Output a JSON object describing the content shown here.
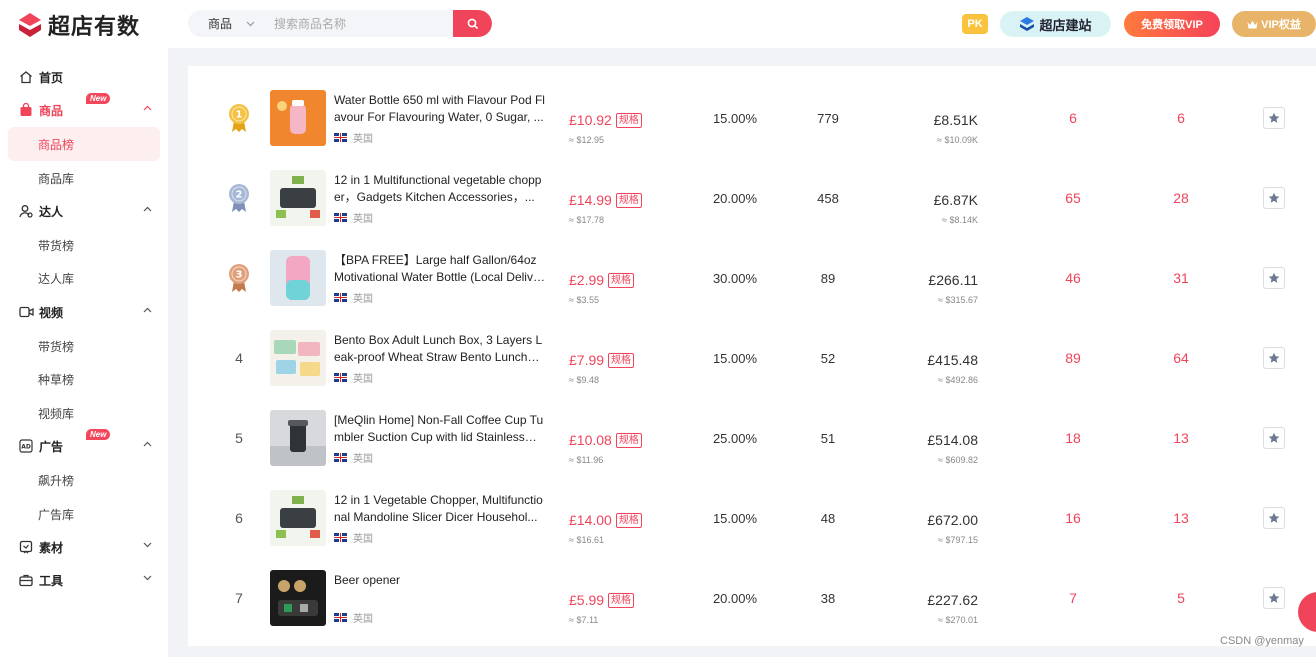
{
  "app": {
    "name": "超店有数"
  },
  "search": {
    "category": "商品",
    "placeholder": "搜索商品名称"
  },
  "header": {
    "pk": "PK",
    "build_site": "超店建站",
    "free_vip": "免费领取VIP",
    "vip_rights": "VIP权益"
  },
  "sidebar": {
    "home": "首页",
    "goods": {
      "label": "商品",
      "new_tag": "New",
      "items": [
        "商品榜",
        "商品库"
      ]
    },
    "talent": {
      "label": "达人",
      "items": [
        "带货榜",
        "达人库"
      ]
    },
    "video": {
      "label": "视频",
      "items": [
        "带货榜",
        "种草榜",
        "视频库"
      ]
    },
    "ads": {
      "label": "广告",
      "new_tag": "New",
      "items": [
        "飙升榜",
        "广告库"
      ]
    },
    "material": {
      "label": "素材"
    },
    "tools": {
      "label": "工具"
    }
  },
  "rows": [
    {
      "rank": "1",
      "name": "Water Bottle 650 ml with Flavour Pod Flavour For Flavouring Water, 0 Sugar, ...",
      "country": "英国",
      "price": "£10.92",
      "spec": "规格",
      "price_usd": "≈ $12.95",
      "rate": "15.00%",
      "sales": "779",
      "gmv": "£8.51K",
      "gmv_usd": "≈ $10.09K",
      "c1": "6",
      "c2": "6"
    },
    {
      "rank": "2",
      "name": "12 in 1 Multifunctional vegetable chopper，Gadgets Kitchen Accessories，...",
      "country": "英国",
      "price": "£14.99",
      "spec": "规格",
      "price_usd": "≈ $17.78",
      "rate": "20.00%",
      "sales": "458",
      "gmv": "£6.87K",
      "gmv_usd": "≈ $8.14K",
      "c1": "65",
      "c2": "28"
    },
    {
      "rank": "3",
      "name": "【BPA FREE】Large half Gallon/64oz Motivational Water Bottle (Local Deliver...",
      "country": "英国",
      "price": "£2.99",
      "spec": "规格",
      "price_usd": "≈ $3.55",
      "rate": "30.00%",
      "sales": "89",
      "gmv": "£266.11",
      "gmv_usd": "≈ $315.67",
      "c1": "46",
      "c2": "31"
    },
    {
      "rank": "4",
      "name": "Bento Box Adult Lunch Box, 3 Layers Leak-proof Wheat Straw Bento Lunch B...",
      "country": "英国",
      "price": "£7.99",
      "spec": "规格",
      "price_usd": "≈ $9.48",
      "rate": "15.00%",
      "sales": "52",
      "gmv": "£415.48",
      "gmv_usd": "≈ $492.86",
      "c1": "89",
      "c2": "64"
    },
    {
      "rank": "5",
      "name": "[MeQlin Home] Non-Fall Coffee Cup Tumbler Suction Cup with lid Stainless S...",
      "country": "英国",
      "price": "£10.08",
      "spec": "规格",
      "price_usd": "≈ $11.96",
      "rate": "25.00%",
      "sales": "51",
      "gmv": "£514.08",
      "gmv_usd": "≈ $609.82",
      "c1": "18",
      "c2": "13"
    },
    {
      "rank": "6",
      "name": "12 in 1 Vegetable Chopper, Multifunctional Mandoline Slicer Dicer Househol...",
      "country": "英国",
      "price": "£14.00",
      "spec": "规格",
      "price_usd": "≈ $16.61",
      "rate": "15.00%",
      "sales": "48",
      "gmv": "£672.00",
      "gmv_usd": "≈ $797.15",
      "c1": "16",
      "c2": "13"
    },
    {
      "rank": "7",
      "name": "Beer opener",
      "country": "英国",
      "price": "£5.99",
      "spec": "规格",
      "price_usd": "≈ $7.11",
      "rate": "20.00%",
      "sales": "38",
      "gmv": "£227.62",
      "gmv_usd": "≈ $270.01",
      "c1": "7",
      "c2": "5"
    }
  ],
  "watermark": "CSDN @yenmay",
  "colors": {
    "accent": "#f0445a",
    "gold": "#e8b46a"
  }
}
